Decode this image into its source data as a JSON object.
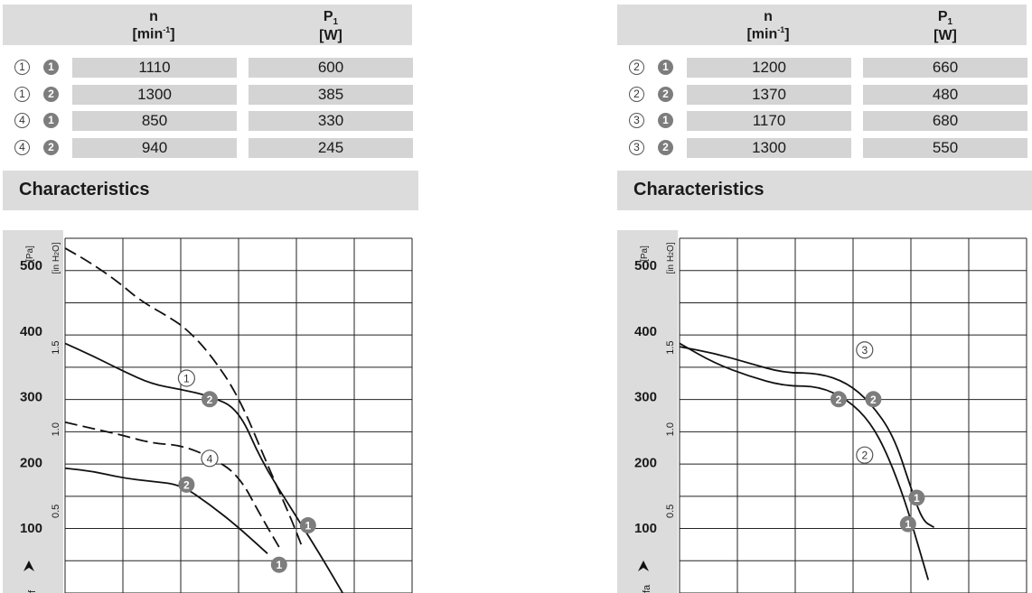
{
  "panels": [
    {
      "id": "left",
      "table": {
        "header_n_main": "n",
        "header_n_unit": "[min",
        "header_n_sup": "-1",
        "header_n_close": "]",
        "header_p_main": "P",
        "header_p_sub": "1",
        "header_p_unit": "[W]",
        "rows": [
          {
            "curve": "1",
            "speed": "1",
            "n": "1110",
            "p1": "600"
          },
          {
            "curve": "1",
            "speed": "2",
            "n": "1300",
            "p1": "385"
          },
          {
            "curve": "4",
            "speed": "1",
            "n": "850",
            "p1": "330"
          },
          {
            "curve": "4",
            "speed": "2",
            "n": "940",
            "p1": "245"
          }
        ]
      },
      "section_title": "Characteristics"
    },
    {
      "id": "right",
      "table": {
        "header_n_main": "n",
        "header_n_unit": "[min",
        "header_n_sup": "-1",
        "header_n_close": "]",
        "header_p_main": "P",
        "header_p_sub": "1",
        "header_p_unit": "[W]",
        "rows": [
          {
            "curve": "2",
            "speed": "1",
            "n": "1200",
            "p1": "660"
          },
          {
            "curve": "2",
            "speed": "2",
            "n": "1370",
            "p1": "480"
          },
          {
            "curve": "3",
            "speed": "1",
            "n": "1170",
            "p1": "680"
          },
          {
            "curve": "3",
            "speed": "2",
            "n": "1300",
            "p1": "550"
          }
        ]
      },
      "section_title": "Characteristics"
    }
  ],
  "chart_data": [
    {
      "type": "line",
      "yunit_pa": "[Pa]",
      "yunit_inh2o": "[in H",
      "yunit_inh2o_sub": "2",
      "yunit_inh2o_close": "O]",
      "yticks_pa": [
        "500",
        "400",
        "300",
        "200",
        "100"
      ],
      "yticks_pa_values": [
        500,
        400,
        300,
        200,
        100
      ],
      "yticks_inh2o": [
        "1.5",
        "1.0",
        "0.5"
      ],
      "yticks_inh2o_values": [
        373.6,
        249.1,
        124.5
      ],
      "ylabel_fragment": "f",
      "ylim": [
        0,
        540
      ],
      "xlim": [
        0,
        6
      ],
      "x_grid_count": 6,
      "y_grid_count": 11,
      "grid": true,
      "series": [
        {
          "dash": true,
          "label": "1",
          "x": [
            0,
            0.4,
            0.9,
            1.3,
            1.8,
            2.1,
            2.5,
            3.0,
            3.5,
            3.9,
            4.1
          ],
          "y": [
            525,
            505,
            475,
            445,
            420,
            402,
            365,
            300,
            195,
            115,
            70
          ],
          "callout": {
            "label": "1",
            "x": 2.1,
            "y": 327
          }
        },
        {
          "dash": false,
          "label": "2",
          "x": [
            0,
            0.5,
            1.0,
            1.5,
            2.0,
            2.5,
            3.0,
            3.4,
            3.9,
            4.4,
            4.8
          ],
          "y": [
            380,
            360,
            338,
            318,
            310,
            300,
            280,
            200,
            130,
            60,
            0
          ],
          "badge": {
            "label": "1",
            "x": 4.2,
            "y": 103
          }
        },
        {
          "dash": true,
          "label": "4",
          "x": [
            0,
            0.5,
            1.0,
            1.5,
            2.0,
            2.5,
            3.0,
            3.4,
            3.7
          ],
          "y": [
            260,
            250,
            240,
            228,
            225,
            208,
            180,
            115,
            70
          ],
          "callout": {
            "label": "4",
            "x": 2.5,
            "y": 205
          }
        },
        {
          "dash": false,
          "label": "2",
          "x": [
            0,
            0.5,
            1.0,
            1.5,
            2.0,
            2.5,
            3.0,
            3.5
          ],
          "y": [
            190,
            185,
            175,
            170,
            165,
            135,
            100,
            60
          ],
          "badge": {
            "label": "1",
            "x": 3.7,
            "y": 43
          }
        }
      ],
      "badges": [
        {
          "label": "2",
          "x": 2.5,
          "y": 295
        },
        {
          "label": "2",
          "x": 2.1,
          "y": 165
        }
      ]
    },
    {
      "type": "line",
      "yunit_pa": "[Pa]",
      "yunit_inh2o": "[in H",
      "yunit_inh2o_sub": "2",
      "yunit_inh2o_close": "O]",
      "yticks_pa": [
        "500",
        "400",
        "300",
        "200",
        "100"
      ],
      "yticks_pa_values": [
        500,
        400,
        300,
        200,
        100
      ],
      "yticks_inh2o": [
        "1.5",
        "1.0",
        "0.5"
      ],
      "yticks_inh2o_values": [
        373.6,
        249.1,
        124.5
      ],
      "ylabel_fragment": "fa",
      "ylim": [
        0,
        540
      ],
      "xlim": [
        0,
        6
      ],
      "x_grid_count": 6,
      "y_grid_count": 11,
      "grid": true,
      "series": [
        {
          "dash": false,
          "label": "3",
          "x": [
            0,
            0.6,
            1.2,
            1.8,
            2.4,
            2.9,
            3.3,
            3.7,
            4.0,
            4.2,
            4.4
          ],
          "y": [
            375,
            365,
            350,
            335,
            335,
            320,
            290,
            240,
            160,
            110,
            100
          ],
          "callout": {
            "label": "3",
            "x": 3.2,
            "y": 370
          },
          "badge": {
            "label": "1",
            "x": 4.1,
            "y": 145
          }
        },
        {
          "dash": false,
          "label": "2",
          "x": [
            0,
            0.6,
            1.2,
            1.8,
            2.4,
            2.9,
            3.3,
            3.6,
            3.9,
            4.1,
            4.3
          ],
          "y": [
            380,
            350,
            330,
            315,
            315,
            295,
            260,
            210,
            140,
            80,
            20
          ],
          "callout": {
            "label": "2",
            "x": 3.2,
            "y": 210
          },
          "badge": {
            "label": "1",
            "x": 3.95,
            "y": 105
          }
        }
      ],
      "badges": [
        {
          "label": "2",
          "x": 2.75,
          "y": 295
        },
        {
          "label": "2",
          "x": 3.35,
          "y": 295
        }
      ]
    }
  ]
}
